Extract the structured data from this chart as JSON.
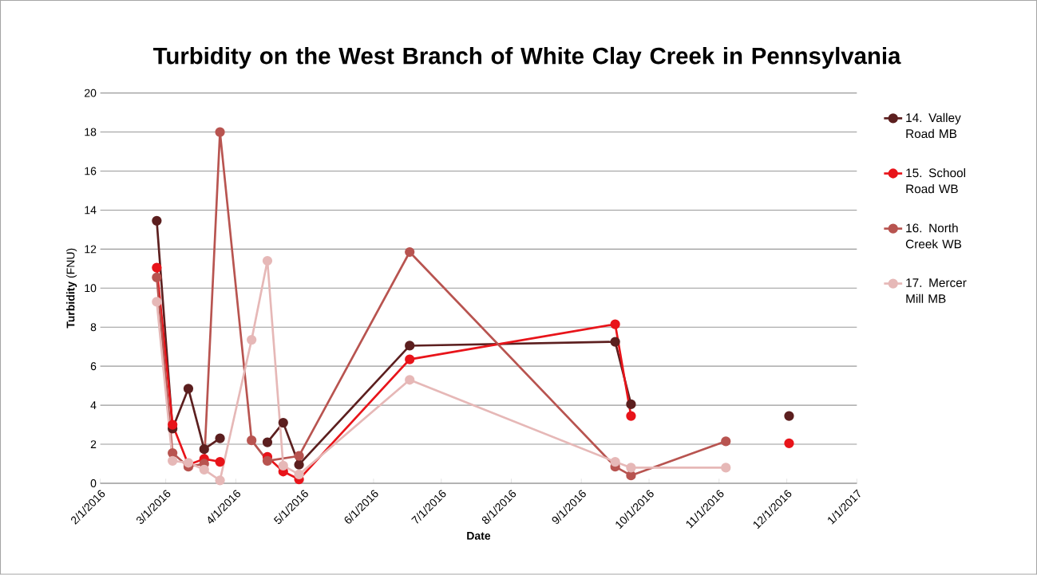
{
  "chart_data": {
    "type": "line",
    "title": "Turbidity on the West Branch of White Clay Creek in Pennsylvania",
    "xlabel": "Date",
    "ylabel": "**Turbidity** (FNU)",
    "xlim": [
      "2016-02-01",
      "2017-01-01"
    ],
    "xticks": [
      {
        "value": "2016-02-01",
        "label": "2/1/2016"
      },
      {
        "value": "2016-03-01",
        "label": "3/1/2016"
      },
      {
        "value": "2016-04-01",
        "label": "4/1/2016"
      },
      {
        "value": "2016-05-01",
        "label": "5/1/2016"
      },
      {
        "value": "2016-06-01",
        "label": "6/1/2016"
      },
      {
        "value": "2016-07-01",
        "label": "7/1/2016"
      },
      {
        "value": "2016-08-01",
        "label": "8/1/2016"
      },
      {
        "value": "2016-09-01",
        "label": "9/1/2016"
      },
      {
        "value": "2016-10-01",
        "label": "10/1/2016"
      },
      {
        "value": "2016-11-01",
        "label": "11/1/2016"
      },
      {
        "value": "2016-12-01",
        "label": "12/1/2016"
      },
      {
        "value": "2017-01-01",
        "label": "1/1/2017"
      }
    ],
    "ylim": [
      0,
      20
    ],
    "yticks": [
      0,
      2,
      4,
      6,
      8,
      10,
      12,
      14,
      16,
      18,
      20
    ],
    "grid": "y",
    "legend": "right",
    "marker": "circle",
    "line_style": "solid",
    "series": [
      {
        "name": "14. Valley Road MB",
        "color": "#5c1f1f",
        "x": [
          "2016-02-26",
          "2016-03-04",
          "2016-03-11",
          "2016-03-18",
          "2016-03-25",
          "2016-04-08",
          "2016-04-15",
          "2016-04-22",
          "2016-04-29",
          "2016-06-17",
          "2016-09-16",
          "2016-09-23",
          "2016-11-04",
          "2016-12-02"
        ],
        "values": [
          13.45,
          2.8,
          4.85,
          1.75,
          2.3,
          null,
          2.1,
          3.1,
          0.95,
          7.05,
          7.25,
          4.05,
          null,
          3.45
        ]
      },
      {
        "name": "15. School Road WB",
        "color": "#e8141a",
        "x": [
          "2016-02-26",
          "2016-03-04",
          "2016-03-11",
          "2016-03-18",
          "2016-03-25",
          "2016-04-08",
          "2016-04-15",
          "2016-04-22",
          "2016-04-29",
          "2016-06-17",
          "2016-09-16",
          "2016-09-23",
          "2016-11-04",
          "2016-12-02"
        ],
        "values": [
          11.05,
          3.0,
          0.95,
          1.25,
          1.1,
          null,
          1.35,
          0.6,
          0.2,
          6.35,
          8.15,
          3.45,
          null,
          2.05
        ]
      },
      {
        "name": "16. North Creek WB",
        "color": "#b85450",
        "x": [
          "2016-02-26",
          "2016-03-04",
          "2016-03-11",
          "2016-03-18",
          "2016-03-25",
          "2016-04-08",
          "2016-04-15",
          "2016-04-29",
          "2016-06-17",
          "2016-09-16",
          "2016-09-23",
          "2016-11-04"
        ],
        "values": [
          10.55,
          1.55,
          0.85,
          1.0,
          18.0,
          2.2,
          1.15,
          1.4,
          11.85,
          0.85,
          0.4,
          2.15
        ]
      },
      {
        "name": "17. Mercer Mill MB",
        "color": "#e6b8b7",
        "x": [
          "2016-02-26",
          "2016-03-04",
          "2016-03-11",
          "2016-03-18",
          "2016-03-25",
          "2016-04-08",
          "2016-04-15",
          "2016-04-22",
          "2016-04-29",
          "2016-06-17",
          "2016-09-16",
          "2016-09-23",
          "2016-11-04"
        ],
        "values": [
          9.3,
          1.15,
          1.05,
          0.7,
          0.15,
          7.35,
          11.4,
          0.9,
          0.45,
          5.3,
          1.1,
          0.8,
          0.8
        ]
      }
    ]
  }
}
